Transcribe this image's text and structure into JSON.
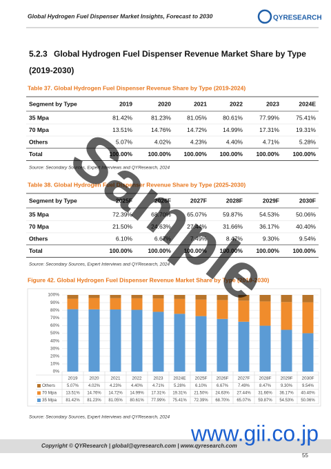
{
  "header": {
    "title": "Global Hydrogen Fuel Dispenser Market Insights, Forecast to 2030",
    "logo": "QYRESEARCH"
  },
  "section": {
    "number": "5.2.3",
    "title": "Global Hydrogen Fuel Dispenser Revenue Market Share by Type",
    "period": "(2019-2030)"
  },
  "tables": [
    {
      "caption": "Table 37.   Global Hydrogen Fuel Dispenser Revenue Share by Type (2019-2024)",
      "columns": [
        "Segment by Type",
        "2019",
        "2020",
        "2021",
        "2022",
        "2023",
        "2024E"
      ],
      "rows": [
        [
          "35 Mpa",
          "81.42%",
          "81.23%",
          "81.05%",
          "80.61%",
          "77.99%",
          "75.41%"
        ],
        [
          "70 Mpa",
          "13.51%",
          "14.76%",
          "14.72%",
          "14.99%",
          "17.31%",
          "19.31%"
        ],
        [
          "Others",
          "5.07%",
          "4.02%",
          "4.23%",
          "4.40%",
          "4.71%",
          "5.28%"
        ],
        [
          "Total",
          "100.00%",
          "100.00%",
          "100.00%",
          "100.00%",
          "100.00%",
          "100.00%"
        ]
      ],
      "source": "Source: Secondary Sources, Expert Interviews and QYResearch, 2024"
    },
    {
      "caption": "Table 38.   Global Hydrogen Fuel Dispenser Revenue Share by Type (2025-2030)",
      "columns": [
        "Segment by Type",
        "2025F",
        "2026F",
        "2027F",
        "2028F",
        "2029F",
        "2030F"
      ],
      "rows": [
        [
          "35 Mpa",
          "72.39%",
          "68.70%",
          "65.07%",
          "59.87%",
          "54.53%",
          "50.06%"
        ],
        [
          "70 Mpa",
          "21.50%",
          "24.63%",
          "27.44%",
          "31.66%",
          "36.17%",
          "40.40%"
        ],
        [
          "Others",
          "6.10%",
          "6.67%",
          "7.49%",
          "8.47%",
          "9.30%",
          "9.54%"
        ],
        [
          "Total",
          "100.00%",
          "100.00%",
          "100.00%",
          "100.00%",
          "100.00%",
          "100.00%"
        ]
      ],
      "source": "Source: Secondary Sources, Expert Interviews and QYResearch, 2024"
    }
  ],
  "figure": {
    "caption": "Figure 42.   Global Hydrogen Fuel Dispenser Revenue Market Share by Type (2019-2030)",
    "type": "bar",
    "stacked": true,
    "categories": [
      "2019",
      "2020",
      "2021",
      "2022",
      "2023",
      "2024E",
      "2025F",
      "2026F",
      "2027F",
      "2028F",
      "2029F",
      "2030F"
    ],
    "series": [
      {
        "name": "35 Mpa",
        "color": "#5b9bd5",
        "values": [
          81.42,
          81.23,
          81.05,
          80.61,
          77.99,
          75.41,
          72.39,
          68.7,
          65.07,
          59.87,
          54.53,
          50.06
        ],
        "value_labels": [
          "81.42%",
          "81.23%",
          "81.05%",
          "80.61%",
          "77.99%",
          "75.41%",
          "72.39%",
          "68.70%",
          "65.07%",
          "59.87%",
          "54.53%",
          "50.06%"
        ]
      },
      {
        "name": "70 Mpa",
        "color": "#f08c2c",
        "values": [
          13.51,
          14.76,
          14.72,
          14.99,
          17.31,
          19.31,
          21.5,
          24.63,
          27.44,
          31.66,
          36.17,
          40.4
        ],
        "value_labels": [
          "13.51%",
          "14.76%",
          "14.72%",
          "14.99%",
          "17.31%",
          "19.31%",
          "21.50%",
          "24.63%",
          "27.44%",
          "31.66%",
          "36.17%",
          "40.40%"
        ]
      },
      {
        "name": "Others",
        "color": "#b8742a",
        "values": [
          5.07,
          4.02,
          4.23,
          4.4,
          4.71,
          5.28,
          6.1,
          6.67,
          7.49,
          8.47,
          9.3,
          9.54
        ],
        "value_labels": [
          "5.07%",
          "4.02%",
          "4.23%",
          "4.40%",
          "4.71%",
          "5.28%",
          "6.10%",
          "6.67%",
          "7.49%",
          "8.47%",
          "9.30%",
          "9.54%"
        ]
      }
    ],
    "ylim": [
      0,
      100
    ],
    "yticks": [
      {
        "value": 0,
        "label": "0%"
      },
      {
        "value": 10,
        "label": "10%"
      },
      {
        "value": 20,
        "label": "20%"
      },
      {
        "value": 30,
        "label": "30%"
      },
      {
        "value": 40,
        "label": "40%"
      },
      {
        "value": 50,
        "label": "50%"
      },
      {
        "value": 60,
        "label": "60%"
      },
      {
        "value": 70,
        "label": "70%"
      },
      {
        "value": 80,
        "label": "80%"
      },
      {
        "value": 90,
        "label": "90%"
      },
      {
        "value": 100,
        "label": "100%"
      }
    ],
    "grid": true,
    "source": "Source: Secondary Sources, Expert Interviews and QYResearch, 2024"
  },
  "footer": {
    "copyright": "Copyright © QYResearch | global@qyresearch.com | www.qyresearch.com",
    "page": "55"
  },
  "watermarks": [
    "Sample",
    "www.gii.co.jp"
  ]
}
